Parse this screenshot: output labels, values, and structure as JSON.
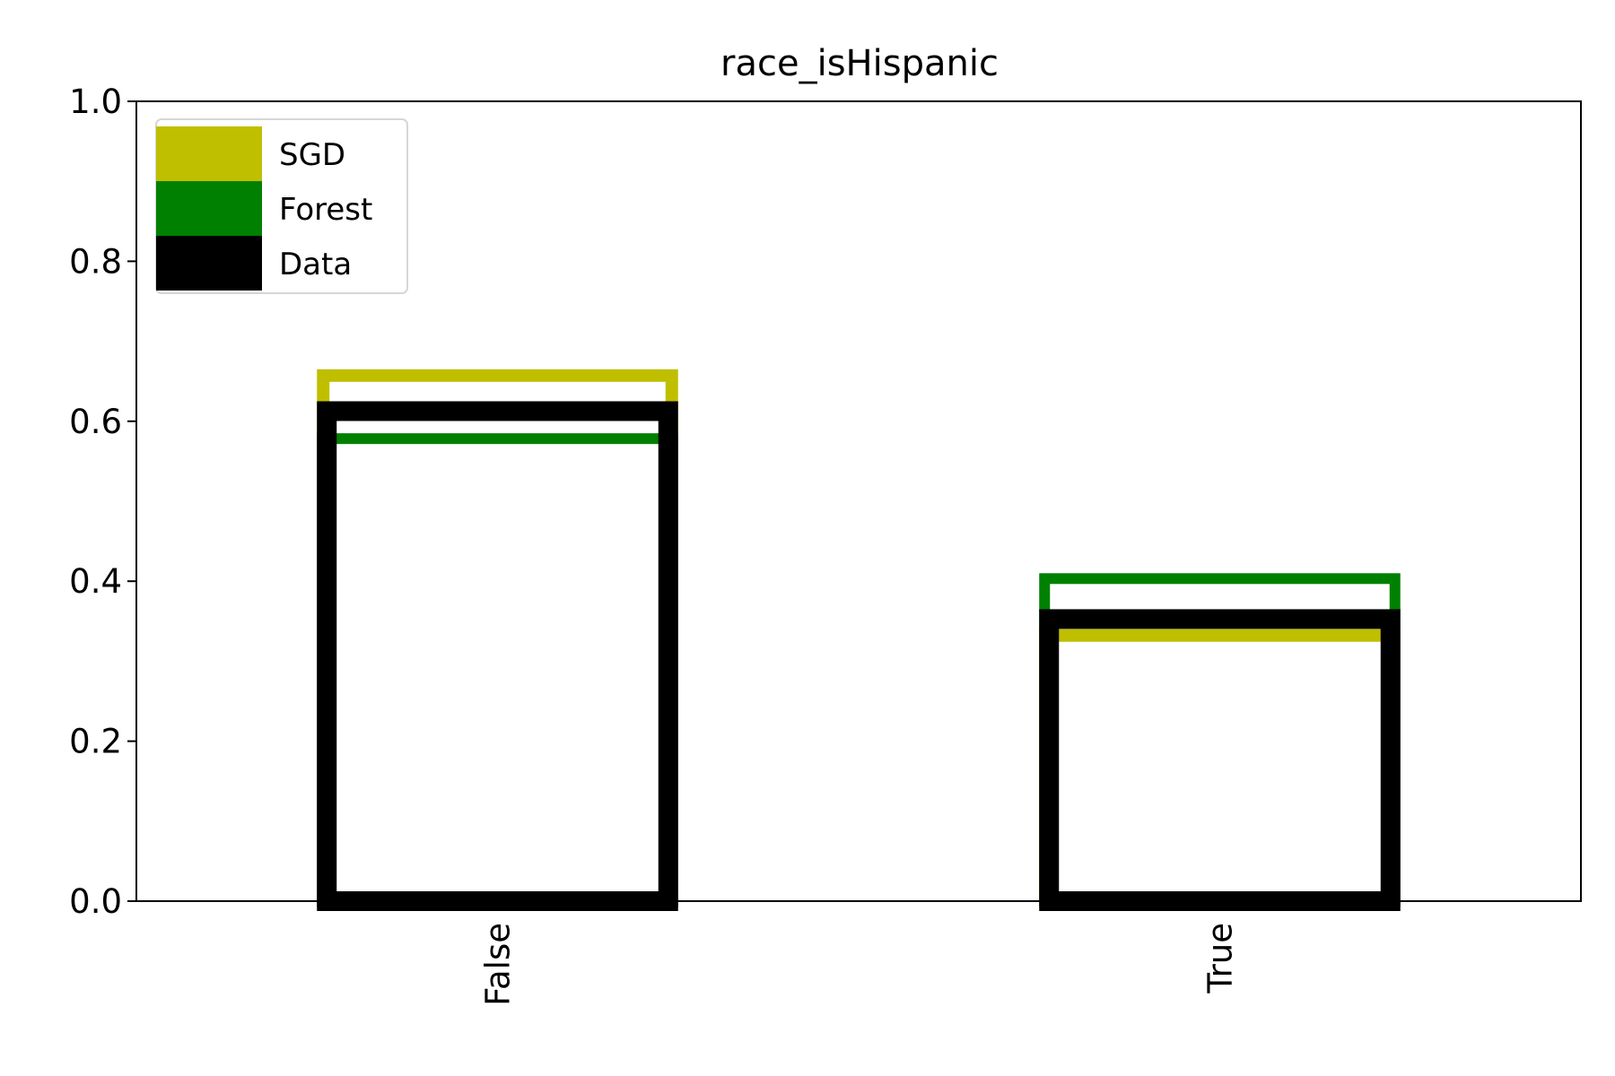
{
  "chart_data": {
    "type": "bar",
    "title": "race_isHispanic",
    "xlabel": "",
    "ylabel": "",
    "categories": [
      "False",
      "True"
    ],
    "ylim": [
      0,
      1.0
    ],
    "yticks": [
      "0.0",
      "0.2",
      "0.4",
      "0.6",
      "0.8",
      "1.0"
    ],
    "series": [
      {
        "name": "SGD",
        "color": "#bfbf00",
        "values": [
          0.665,
          0.34
        ]
      },
      {
        "name": "Forest",
        "color": "#008000",
        "values": [
          0.585,
          0.41
        ]
      },
      {
        "name": "Data",
        "color": "#000000",
        "values": [
          0.625,
          0.365
        ]
      }
    ],
    "legend": "top-left",
    "grid": false
  }
}
